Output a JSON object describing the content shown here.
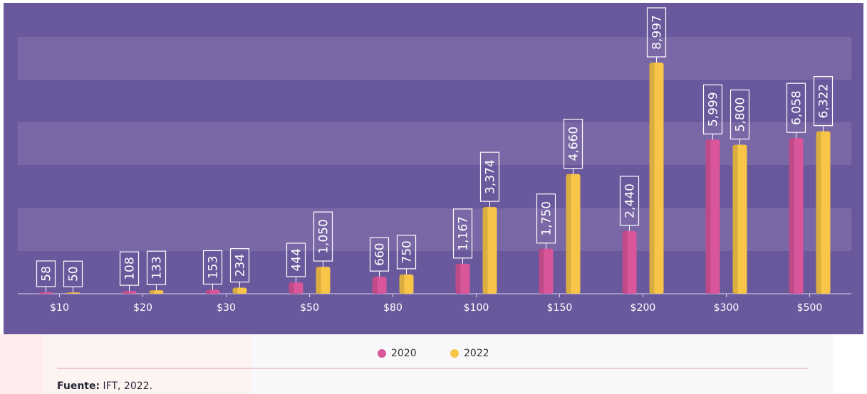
{
  "chart_data": {
    "type": "bar",
    "categories": [
      "$10",
      "$20",
      "$30",
      "$50",
      "$80",
      "$100",
      "$150",
      "$200",
      "$300",
      "$500"
    ],
    "series": [
      {
        "name": "2020",
        "color": "#d9569b",
        "values": [
          58,
          108,
          153,
          444,
          660,
          1167,
          1750,
          2440,
          5999,
          6058
        ],
        "value_labels": [
          "58",
          "108",
          "153",
          "444",
          "660",
          "1,167",
          "1,750",
          "2,440",
          "5,999",
          "6,058"
        ]
      },
      {
        "name": "2022",
        "color": "#f8c549",
        "values": [
          50,
          133,
          234,
          1050,
          750,
          3374,
          4660,
          8997,
          5800,
          6322
        ],
        "value_labels": [
          "50",
          "133",
          "234",
          "1,050",
          "750",
          "3,374",
          "4,660",
          "8,997",
          "5,800",
          "6,322"
        ]
      }
    ]
  },
  "source": {
    "label": "Fuente:",
    "text": "IFT, 2022."
  }
}
